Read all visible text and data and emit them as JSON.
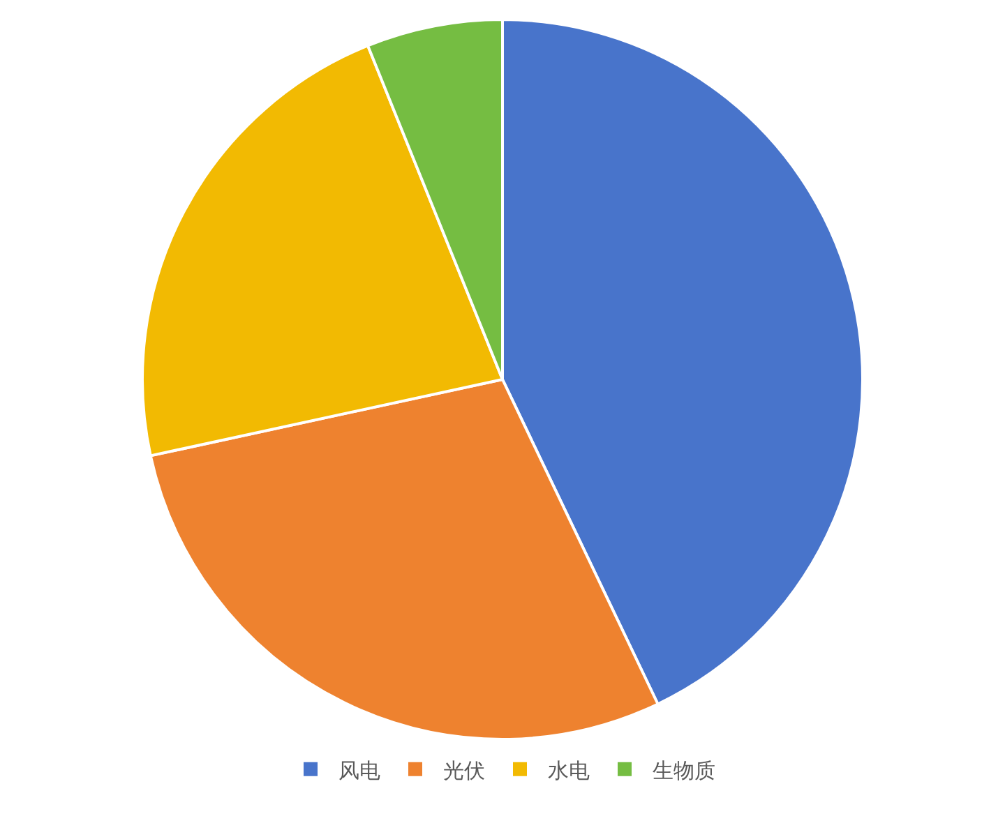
{
  "chart_data": {
    "type": "pie",
    "categories": [
      "风电",
      "光伏",
      "水电",
      "生物质"
    ],
    "values": [
      42.9,
      28.7,
      22.3,
      6.1
    ],
    "colors": [
      "#4874cb",
      "#ee822f",
      "#f2ba02",
      "#75bd42"
    ],
    "legend": "bottom"
  }
}
